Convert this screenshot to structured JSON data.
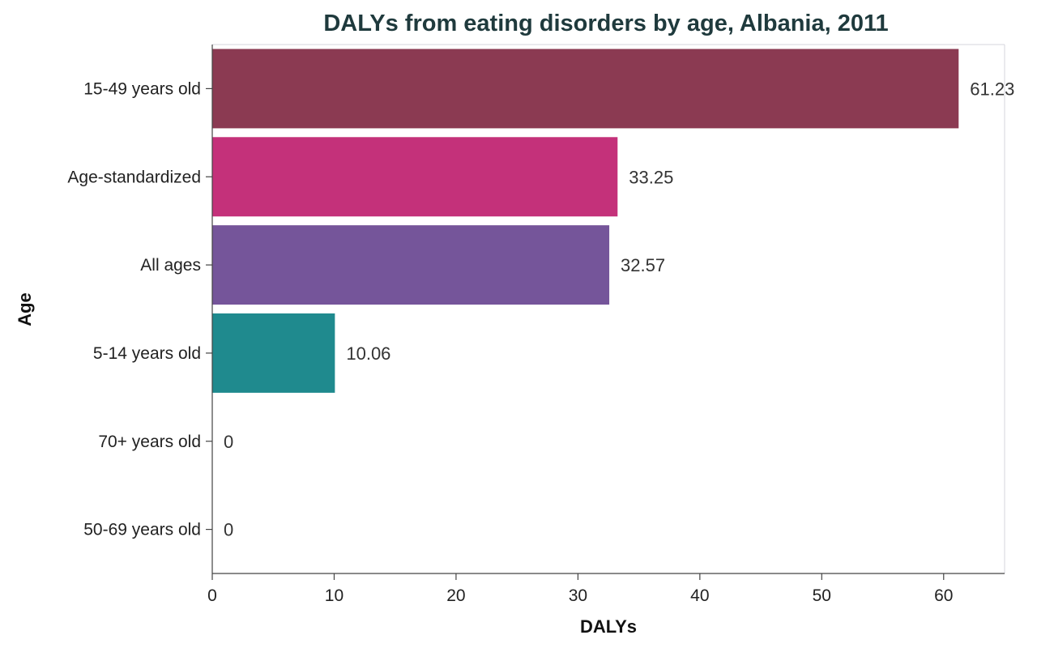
{
  "chart_data": {
    "type": "bar",
    "orientation": "horizontal",
    "title": "DALYs from eating disorders by age, Albania, 2011",
    "xlabel": "DALYs",
    "ylabel": "Age",
    "xlim": [
      0,
      65
    ],
    "xticks": [
      0,
      10,
      20,
      30,
      40,
      50,
      60
    ],
    "grid": false,
    "legend": "none",
    "categories": [
      "15-49 years old",
      "Age-standardized",
      "All ages",
      "5-14 years old",
      "70+ years old",
      "50-69 years old"
    ],
    "values": [
      61.23,
      33.25,
      32.57,
      10.06,
      0,
      0
    ],
    "value_labels": [
      "61.23",
      "33.25",
      "32.57",
      "10.06",
      "0",
      "0"
    ],
    "colors": [
      "#8b3a52",
      "#c4317a",
      "#75559a",
      "#1f8a8e",
      "#999999",
      "#999999"
    ]
  }
}
